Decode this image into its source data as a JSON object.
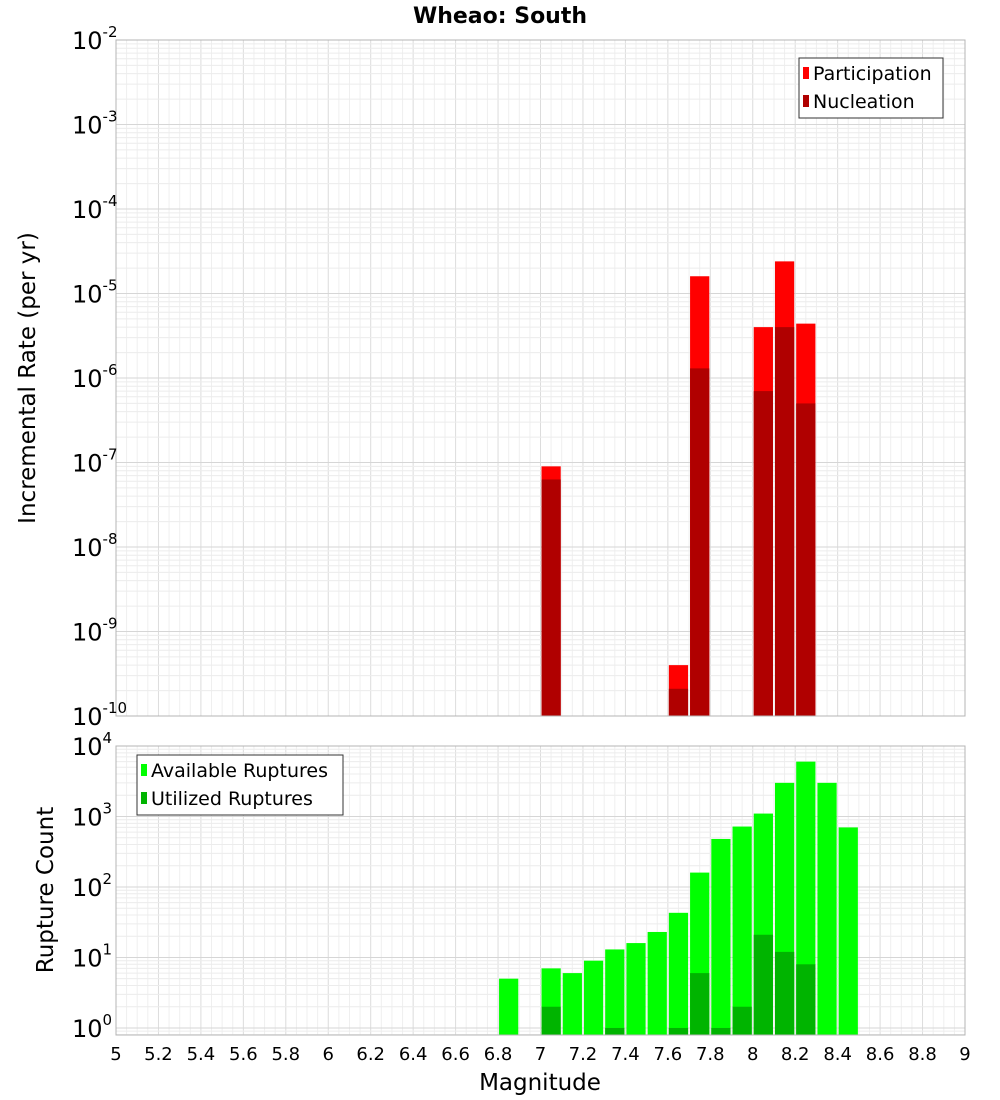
{
  "chart_data": {
    "type": "bar",
    "title": "Wheao: South",
    "xlabel": "Magnitude",
    "xlim": [
      5,
      9
    ],
    "xticks": [
      "5",
      "5.2",
      "5.4",
      "5.6",
      "5.8",
      "6",
      "6.2",
      "6.4",
      "6.6",
      "6.8",
      "7",
      "7.2",
      "7.4",
      "7.6",
      "7.8",
      "8",
      "8.2",
      "8.4",
      "8.6",
      "8.8",
      "9"
    ],
    "bin_width": 0.1,
    "panels": [
      {
        "name": "rate",
        "ylabel": "Incremental Rate (per yr)",
        "yscale": "log",
        "ylim_exp": [
          -10,
          -2
        ],
        "legend": {
          "position": "top-right",
          "entries": [
            "Participation",
            "Nucleation"
          ]
        },
        "series": [
          {
            "name": "Participation",
            "color": "#ff0000",
            "x": [
              7.05,
              7.65,
              7.75,
              8.05,
              8.15,
              8.25
            ],
            "values": [
              9e-08,
              4e-10,
              1.6e-05,
              4e-06,
              2.4e-05,
              4.4e-06
            ]
          },
          {
            "name": "Nucleation",
            "color": "#b00000",
            "x": [
              7.05,
              7.65,
              7.75,
              8.05,
              8.15,
              8.25
            ],
            "values": [
              6.3e-08,
              2.1e-10,
              1.3e-06,
              7e-07,
              4e-06,
              5e-07
            ]
          }
        ]
      },
      {
        "name": "count",
        "ylabel": "Rupture Count",
        "yscale": "log",
        "ylim_exp": [
          -0.1,
          4
        ],
        "legend": {
          "position": "top-left",
          "entries": [
            "Available Ruptures",
            "Utilized Ruptures"
          ]
        },
        "series": [
          {
            "name": "Available Ruptures",
            "color": "#00ff00",
            "x": [
              6.85,
              7.05,
              7.15,
              7.25,
              7.35,
              7.45,
              7.55,
              7.65,
              7.75,
              7.85,
              7.95,
              8.05,
              8.15,
              8.25,
              8.35,
              8.45
            ],
            "values": [
              5,
              7,
              6,
              9,
              13,
              16,
              23,
              43,
              160,
              480,
              720,
              1100,
              3000,
              6000,
              3000,
              700
            ]
          },
          {
            "name": "Utilized Ruptures",
            "color": "#00b400",
            "x": [
              7.05,
              7.35,
              7.65,
              7.75,
              7.85,
              7.95,
              8.05,
              8.15,
              8.25
            ],
            "values": [
              2,
              1,
              1,
              6,
              1,
              2,
              21,
              12,
              8
            ]
          }
        ]
      }
    ]
  }
}
